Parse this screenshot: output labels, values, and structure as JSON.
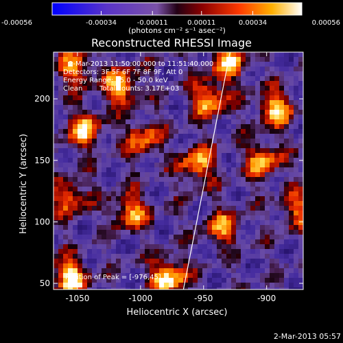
{
  "chart_data": {
    "type": "heatmap",
    "title": "Reconstructed RHESSI Image",
    "xlabel": "Heliocentric X (arcsec)",
    "ylabel": "Heliocentric Y (arcsec)",
    "xlim": [
      -1069,
      -871
    ],
    "ylim": [
      45,
      238
    ],
    "x_ticks": [
      {
        "value": -1050,
        "label": "-1050"
      },
      {
        "value": -1000,
        "label": "-1000"
      },
      {
        "value": -950,
        "label": "-950"
      },
      {
        "value": -900,
        "label": "-900"
      }
    ],
    "y_ticks": [
      {
        "value": 50,
        "label": "50"
      },
      {
        "value": 100,
        "label": "100"
      },
      {
        "value": 150,
        "label": "150"
      },
      {
        "value": 200,
        "label": "200"
      }
    ],
    "colorbar": {
      "range": [
        -0.00056,
        0.00056
      ],
      "ticks": [
        {
          "value": -0.00056,
          "label": "-0.00056"
        },
        {
          "value": -0.00034,
          "label": "-0.00034"
        },
        {
          "value": -0.00011,
          "label": "-0.00011"
        },
        {
          "value": 0.00011,
          "label": "0.00011"
        },
        {
          "value": 0.00034,
          "label": "0.00034"
        },
        {
          "value": 0.00056,
          "label": "0.00056"
        }
      ],
      "units_label": "(photons cm⁻² s⁻¹ asec⁻²)"
    },
    "annotations": {
      "time_range": "2-Mar-2013 11:50:00.000 to 11:51:40.000",
      "detectors": "Detectors: 3F 5F 6F 7F 8F 9F, Att 0",
      "energy": "Energy Range: 25.0 - 50.0 keV",
      "method": "Clean",
      "total_counts": "Total counts: 3.17E+03",
      "peak": "Position of Peak = [-976,45]"
    },
    "limb_line": [
      [
        -966,
        45
      ],
      [
        -929,
        238
      ]
    ],
    "grid": false,
    "hot_spots": [
      {
        "x": -1056,
        "y": 55,
        "strength": 1.0
      },
      {
        "x": -978,
        "y": 55,
        "strength": 1.0
      },
      {
        "x": -1015,
        "y": 210,
        "strength": 0.9
      },
      {
        "x": -1045,
        "y": 175,
        "strength": 0.8
      },
      {
        "x": -998,
        "y": 168,
        "strength": 0.7
      },
      {
        "x": -945,
        "y": 200,
        "strength": 0.85
      },
      {
        "x": -893,
        "y": 192,
        "strength": 0.9
      },
      {
        "x": -903,
        "y": 150,
        "strength": 0.75
      },
      {
        "x": -955,
        "y": 147,
        "strength": 0.8
      },
      {
        "x": -1008,
        "y": 108,
        "strength": 0.75
      },
      {
        "x": -1056,
        "y": 120,
        "strength": 0.7
      },
      {
        "x": -935,
        "y": 95,
        "strength": 0.65
      },
      {
        "x": -876,
        "y": 110,
        "strength": 0.6
      },
      {
        "x": -1052,
        "y": 225,
        "strength": 0.7
      },
      {
        "x": -930,
        "y": 230,
        "strength": 0.8
      }
    ]
  },
  "footer": {
    "date_stamp": "2-Mar-2013 05:57"
  }
}
